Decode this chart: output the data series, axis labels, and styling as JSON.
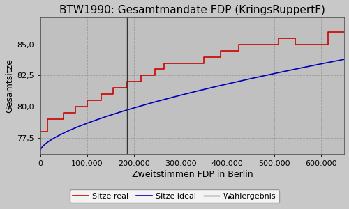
{
  "title": "BTW1990: Gesamtmandate FDP (KringsRuppertF)",
  "xlabel": "Zweitstimmen FDP in Berlin",
  "ylabel": "Gesamtsitze",
  "background_color": "#c0c0c0",
  "fig_facecolor": "#c8c8c8",
  "xlim": [
    0,
    650000
  ],
  "ylim": [
    76.2,
    87.2
  ],
  "yticks": [
    77.5,
    80.0,
    82.5,
    85.0
  ],
  "xticks": [
    0,
    100000,
    200000,
    300000,
    400000,
    500000,
    600000
  ],
  "xtick_labels": [
    "0",
    "100.000",
    "200.000",
    "300.000",
    "400.000",
    "500.000",
    "600.000"
  ],
  "wahlergebnis_x": 185000,
  "step_x": [
    0,
    15000,
    15000,
    50000,
    50000,
    75000,
    75000,
    100000,
    100000,
    130000,
    130000,
    155000,
    155000,
    185000,
    185000,
    215000,
    215000,
    245000,
    245000,
    265000,
    265000,
    305000,
    305000,
    350000,
    350000,
    385000,
    385000,
    425000,
    425000,
    465000,
    465000,
    510000,
    510000,
    545000,
    545000,
    615000,
    615000,
    650000
  ],
  "step_y": [
    78.0,
    78.0,
    79.0,
    79.0,
    79.5,
    79.5,
    80.0,
    80.0,
    80.5,
    80.5,
    81.0,
    81.0,
    81.5,
    81.5,
    82.0,
    82.0,
    82.5,
    82.5,
    83.0,
    83.0,
    83.5,
    83.5,
    83.5,
    83.5,
    84.0,
    84.0,
    84.5,
    84.5,
    85.0,
    85.0,
    85.0,
    85.0,
    85.5,
    85.5,
    85.0,
    85.0,
    86.0,
    86.0
  ],
  "ideal_x_start": 0,
  "ideal_x_end": 650000,
  "ideal_y_start": 76.5,
  "ideal_y_end": 83.8,
  "ideal_curve_power": 0.65,
  "legend_labels": [
    "Sitze real",
    "Sitze ideal",
    "Wahlergebnis"
  ],
  "line_colors": {
    "real": "#cc0000",
    "ideal": "#0000bb",
    "wahlergebnis": "#333333"
  },
  "line_widths": {
    "real": 1.2,
    "ideal": 1.2,
    "wahlergebnis": 1.0
  },
  "grid_color": "#999999",
  "grid_linestyle": "--",
  "title_fontsize": 11,
  "axis_label_fontsize": 9,
  "tick_fontsize": 8,
  "legend_fontsize": 8
}
